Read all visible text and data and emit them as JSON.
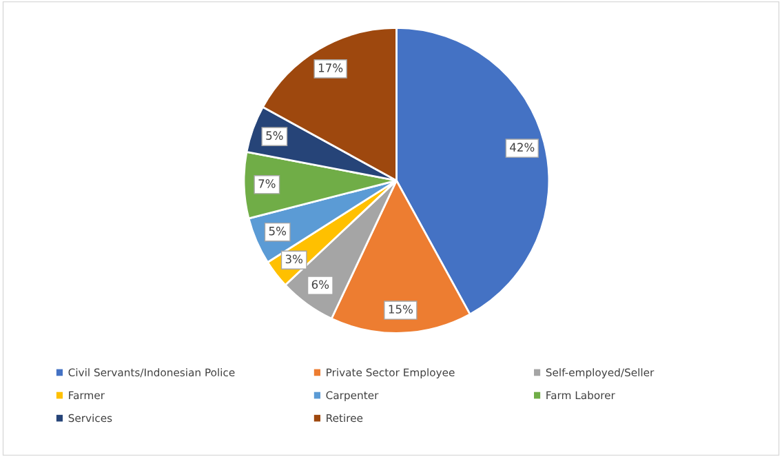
{
  "chart_data": {
    "type": "pie",
    "categories": [
      "Civil Servants/Indonesian Police",
      "Private Sector Employee",
      "Self-employed/Seller",
      "Farmer",
      "Carpenter",
      "Farm Laborer",
      "Services",
      "Retiree"
    ],
    "values": [
      42,
      15,
      6,
      3,
      5,
      7,
      5,
      17
    ],
    "colors": [
      "#4472c4",
      "#ed7d31",
      "#a5a5a5",
      "#ffc000",
      "#5b9bd5",
      "#70ad47",
      "#264478",
      "#9e480e"
    ],
    "value_labels": [
      "42%",
      "15%",
      "6%",
      "3%",
      "5%",
      "7%",
      "5%",
      "17%"
    ],
    "legend": "bottom"
  }
}
